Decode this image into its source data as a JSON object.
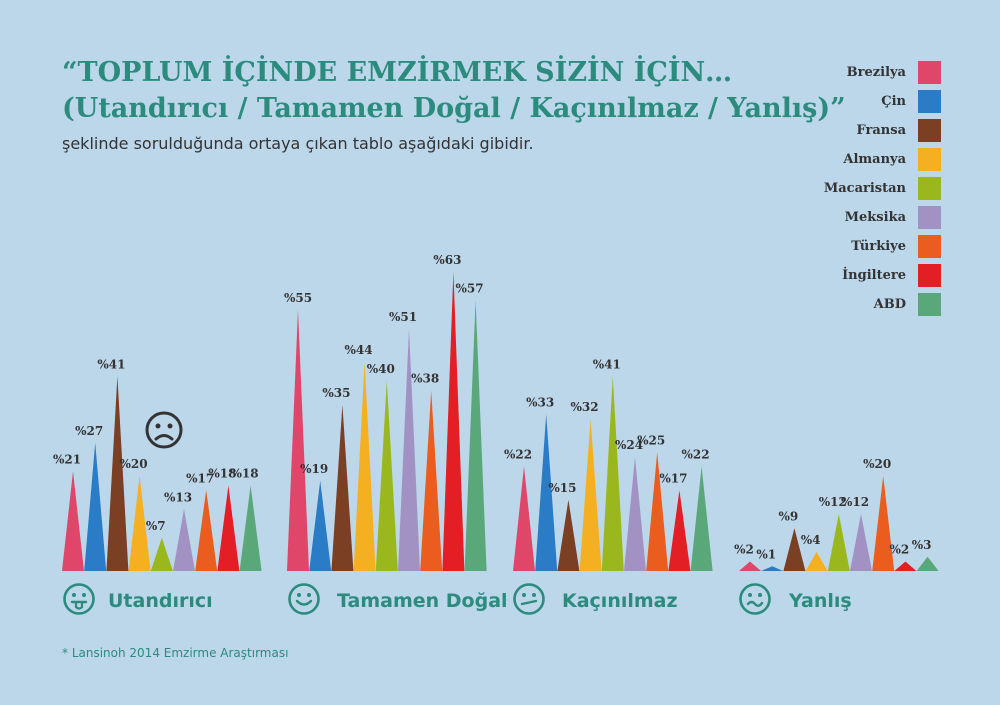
{
  "header": {
    "title_line1": "“TOPLUM İÇİNDE EMZİRMEK SİZİN İÇİN…",
    "title_line2": "(Utandırıcı / Tamamen Doğal / Kaçınılmaz / Yanlış)”",
    "subtitle": "şeklinde sorulduğunda ortaya çıkan tablo aşağıdaki gibidir."
  },
  "footnote": "* Lansinoh 2014 Emzirme Araştırması",
  "icons": {
    "group1": "tongue-out-face-icon",
    "group2": "smiley-face-icon",
    "group3": "wry-face-icon",
    "group4": "confused-face-icon",
    "accent": "sad-face-icon"
  },
  "chart_data": {
    "type": "bar",
    "categories": [
      "Utandırıcı",
      "Tamamen Doğal",
      "Kaçınılmaz",
      "Yanlış"
    ],
    "value_prefix": "%",
    "series": [
      {
        "name": "Brezilya",
        "color": "#e0466a",
        "values": [
          21,
          55,
          22,
          2
        ]
      },
      {
        "name": "Çin",
        "color": "#2a7cc7",
        "values": [
          27,
          19,
          33,
          1
        ]
      },
      {
        "name": "Fransa",
        "color": "#7b3f24",
        "values": [
          41,
          35,
          15,
          9
        ]
      },
      {
        "name": "Almanya",
        "color": "#f5b021",
        "values": [
          20,
          44,
          32,
          4
        ]
      },
      {
        "name": "Macaristan",
        "color": "#9ab81e",
        "values": [
          7,
          40,
          41,
          12
        ]
      },
      {
        "name": "Meksika",
        "color": "#a292c4",
        "values": [
          13,
          51,
          24,
          12
        ]
      },
      {
        "name": "Türkiye",
        "color": "#ea5d1e",
        "values": [
          17,
          38,
          25,
          20
        ]
      },
      {
        "name": "İngiltere",
        "color": "#e31e24",
        "values": [
          18,
          63,
          17,
          2
        ]
      },
      {
        "name": "ABD",
        "color": "#5aa87a",
        "values": [
          18,
          57,
          22,
          3
        ]
      }
    ]
  }
}
